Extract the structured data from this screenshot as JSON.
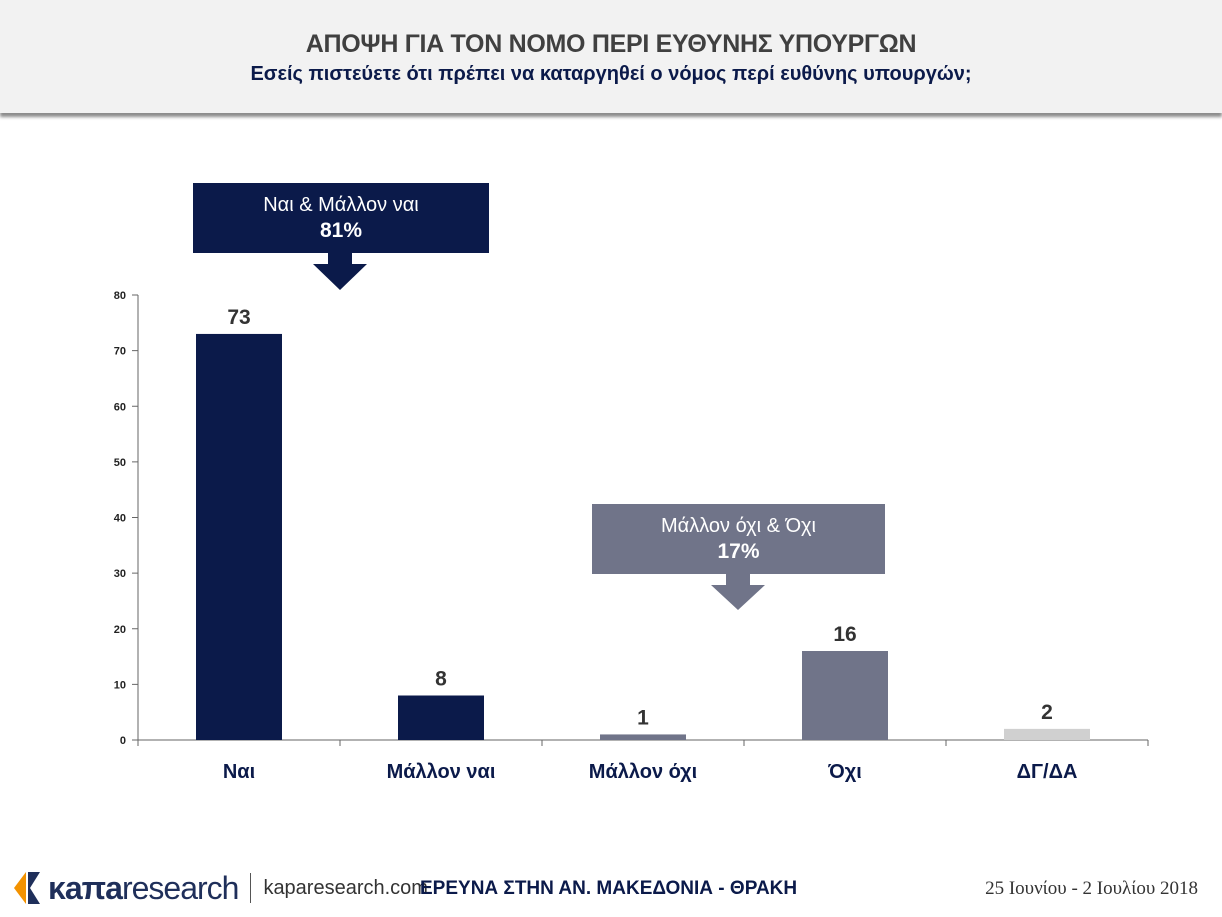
{
  "header": {
    "title": "ΑΠΟΨΗ ΓΙΑ ΤΟΝ ΝΟΜΟ ΠΕΡΙ ΕΥΘΥΝΗΣ ΥΠΟΥΡΓΩΝ",
    "subtitle": "Εσείς πιστεύετε ότι πρέπει να καταργηθεί ο νόμος περί ευθύνης υπουργών;"
  },
  "chart_data": {
    "type": "bar",
    "title": "ΑΠΟΨΗ ΓΙΑ ΤΟΝ ΝΟΜΟ ΠΕΡΙ ΕΥΘΥΝΗΣ ΥΠΟΥΡΓΩΝ",
    "subtitle": "Εσείς πιστεύετε ότι πρέπει να καταργηθεί ο νόμος περί ευθύνης υπουργών;",
    "categories": [
      "Ναι",
      "Μάλλον ναι",
      "Μάλλον όχι",
      "Όχι",
      "ΔΓ/ΔΑ"
    ],
    "values": [
      73,
      8,
      1,
      16,
      2
    ],
    "colors": [
      "#0b1a4a",
      "#0b1a4a",
      "#707489",
      "#707489",
      "#d0d0d0"
    ],
    "ylim": [
      0,
      80
    ],
    "yticks": [
      0,
      10,
      20,
      30,
      40,
      50,
      60,
      70,
      80
    ],
    "grid": false,
    "xlabel": "",
    "ylabel": "",
    "annotations": [
      {
        "label": "Ναι & Μάλλον ναι",
        "value": "81%",
        "color": "#0b1a4a"
      },
      {
        "label": "Μάλλον όχι & Όχι",
        "value": "17%",
        "color": "#707489"
      }
    ]
  },
  "footer": {
    "brand_bold": "κaπa",
    "brand_light": "research",
    "url": "kaparesearch.com",
    "survey": "ΕΡΕΥΝΑ ΣΤΗΝ ΑΝ. ΜΑΚΕΔΟΝΙΑ - ΘΡΑΚΗ",
    "date": "25 Ιουνίου - 2 Ιουλίου 2018",
    "logo_colors": [
      "#f39200",
      "#1f2f5a"
    ]
  }
}
